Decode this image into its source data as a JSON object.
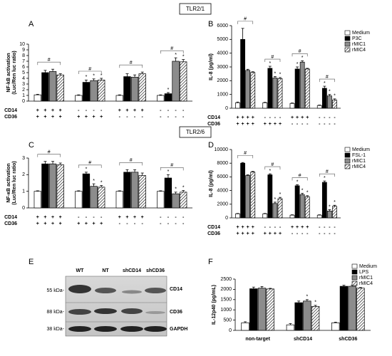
{
  "headers": [
    "TLR2/1",
    "TLR2/6"
  ],
  "blot": {
    "panel": "E",
    "lanes": [
      "WT",
      "NT",
      "shCD14",
      "shCD36"
    ],
    "sizes": [
      "55 kDa-",
      "88 kDa-",
      "38 kDa-"
    ],
    "proteins": [
      "CD14",
      "CD36",
      "GAPDH"
    ]
  },
  "chart_data": [
    {
      "type": "bar",
      "panel": "A",
      "ylabel": [
        "NF-kB activation",
        "(Luc/Ren luc ratio)"
      ],
      "ylim": [
        0,
        10
      ],
      "yticks": [
        0,
        1,
        2,
        3,
        4,
        5,
        6,
        7,
        8,
        9,
        10
      ],
      "legend": false,
      "group_annotation": "#",
      "rows": [
        {
          "name": "CD14",
          "values": [
            "+",
            "+",
            "+",
            "+",
            "-",
            "-",
            "-",
            "-",
            "+",
            "+",
            "+",
            "+",
            "-",
            "-",
            "-",
            "-"
          ]
        },
        {
          "name": "CD36",
          "values": [
            "+",
            "+",
            "+",
            "+",
            "+",
            "+",
            "+",
            "+",
            "-",
            "-",
            "-",
            "-",
            "-",
            "-",
            "-",
            "-"
          ]
        }
      ],
      "series": [
        {
          "name": "Medium",
          "color": "#ffffff",
          "values": [
            1.1,
            1.0,
            1.0,
            1.0
          ],
          "errors": [
            0.1,
            0.1,
            0.1,
            0.1
          ],
          "stars": [
            null,
            null,
            null,
            null
          ]
        },
        {
          "name": "P3C",
          "color": "#000000",
          "values": [
            5.0,
            3.3,
            4.3,
            1.3
          ],
          "errors": [
            0.4,
            0.4,
            0.5,
            0.2
          ],
          "stars": [
            null,
            "*",
            null,
            "*"
          ]
        },
        {
          "name": "rMIC1",
          "color": "#8c8c8c",
          "values": [
            5.2,
            3.6,
            4.2,
            7.0
          ],
          "errors": [
            0.4,
            0.3,
            0.4,
            0.6
          ],
          "stars": [
            null,
            "*",
            null,
            "*"
          ]
        },
        {
          "name": "rMIC4",
          "color": "#ffffff",
          "hatch": true,
          "values": [
            4.6,
            3.7,
            4.8,
            6.9
          ],
          "errors": [
            0.2,
            0.3,
            0.3,
            0.4
          ],
          "stars": [
            null,
            "*",
            null,
            "*"
          ]
        }
      ]
    },
    {
      "type": "bar",
      "panel": "B",
      "ylabel": [
        "IL-8 (pg/ml)"
      ],
      "ylim": [
        0,
        6000
      ],
      "yticks": [
        0,
        1000,
        2000,
        3000,
        4000,
        5000,
        6000
      ],
      "legend": true,
      "group_annotation": "#",
      "rows": [
        {
          "name": "CD14",
          "values": [
            "+",
            "+",
            "+",
            "+",
            "-",
            "-",
            "-",
            "-",
            "+",
            "+",
            "+",
            "+",
            "-",
            "-",
            "-",
            "-"
          ]
        },
        {
          "name": "CD36",
          "values": [
            "+",
            "+",
            "+",
            "+",
            "+",
            "+",
            "+",
            "+",
            "-",
            "-",
            "-",
            "-",
            "-",
            "-",
            "-",
            "-"
          ]
        }
      ],
      "series": [
        {
          "name": "Medium",
          "color": "#ffffff",
          "values": [
            400,
            400,
            350,
            200
          ],
          "errors": [
            50,
            30,
            30,
            30
          ],
          "stars": [
            null,
            null,
            null,
            null
          ]
        },
        {
          "name": "P3C",
          "color": "#000000",
          "values": [
            5000,
            2900,
            2850,
            1450
          ],
          "errors": [
            800,
            150,
            150,
            150
          ],
          "stars": [
            null,
            "*",
            "*",
            "*"
          ]
        },
        {
          "name": "rMIC1",
          "color": "#8c8c8c",
          "values": [
            2750,
            2200,
            3350,
            900
          ],
          "errors": [
            80,
            100,
            100,
            100
          ],
          "stars": [
            null,
            "*",
            "*",
            "*"
          ]
        },
        {
          "name": "rMIC4",
          "color": "#ffffff",
          "hatch": true,
          "values": [
            2600,
            2150,
            2850,
            600
          ],
          "errors": [
            50,
            80,
            50,
            80
          ],
          "stars": [
            null,
            "*",
            null,
            "*"
          ]
        }
      ]
    },
    {
      "type": "bar",
      "panel": "C",
      "ylabel": [
        "NF-κB activation",
        "(Luc/Ren luc ratio)"
      ],
      "ylim": [
        0,
        3
      ],
      "yticks": [
        0,
        1,
        2,
        3
      ],
      "legend": false,
      "group_annotation": "#",
      "rows": [
        {
          "name": "CD14",
          "values": [
            "+",
            "+",
            "+",
            "+",
            "-",
            "-",
            "-",
            "-",
            "+",
            "+",
            "+",
            "+",
            "-",
            "-",
            "-",
            "-"
          ]
        },
        {
          "name": "CD36",
          "values": [
            "+",
            "+",
            "+",
            "+",
            "+",
            "+",
            "+",
            "+",
            "-",
            "-",
            "-",
            "-",
            "-",
            "-",
            "-",
            "-"
          ]
        }
      ],
      "series": [
        {
          "name": "Medium",
          "color": "#ffffff",
          "values": [
            1.0,
            1.0,
            1.0,
            1.0
          ],
          "errors": [
            0.03,
            0.03,
            0.03,
            0.03
          ],
          "stars": [
            null,
            null,
            null,
            null
          ]
        },
        {
          "name": "FSL-1",
          "color": "#000000",
          "values": [
            2.65,
            2.05,
            2.15,
            1.8
          ],
          "errors": [
            0.15,
            0.1,
            0.15,
            0.2
          ],
          "stars": [
            null,
            "*",
            null,
            "*"
          ]
        },
        {
          "name": "rMIC1",
          "color": "#8c8c8c",
          "values": [
            2.65,
            1.3,
            2.15,
            0.85
          ],
          "errors": [
            0.15,
            0.15,
            0.15,
            0.1
          ],
          "stars": [
            null,
            "*",
            null,
            "*"
          ]
        },
        {
          "name": "rMIC4",
          "color": "#ffffff",
          "hatch": true,
          "values": [
            2.6,
            1.25,
            1.95,
            0.95
          ],
          "errors": [
            0.1,
            0.1,
            0.15,
            0.1
          ],
          "stars": [
            null,
            "*",
            null,
            "*"
          ]
        }
      ]
    },
    {
      "type": "bar",
      "panel": "D",
      "ylabel": [
        "IL-8 (pg/ml)"
      ],
      "ylim": [
        0,
        10000
      ],
      "yticks": [
        0,
        2000,
        4000,
        6000,
        8000,
        10000
      ],
      "legend": true,
      "group_annotation": "#",
      "rows": [
        {
          "name": "CD14",
          "values": [
            "+",
            "+",
            "+",
            "+",
            "-",
            "-",
            "-",
            "-",
            "+",
            "+",
            "+",
            "+",
            "-",
            "-",
            "-",
            "-"
          ]
        },
        {
          "name": "CD36",
          "values": [
            "+",
            "+",
            "+",
            "+",
            "+",
            "+",
            "+",
            "+",
            "-",
            "-",
            "-",
            "-",
            "-",
            "-",
            "-",
            "-"
          ]
        }
      ],
      "series": [
        {
          "name": "Medium",
          "color": "#ffffff",
          "values": [
            600,
            600,
            400,
            400
          ],
          "errors": [
            50,
            50,
            50,
            50
          ],
          "stars": [
            null,
            null,
            null,
            null
          ]
        },
        {
          "name": "FSL-1",
          "color": "#000000",
          "values": [
            8000,
            6300,
            4700,
            5200
          ],
          "errors": [
            100,
            150,
            150,
            200
          ],
          "stars": [
            null,
            "*",
            "*",
            "*"
          ]
        },
        {
          "name": "rMIC1",
          "color": "#8c8c8c",
          "values": [
            6200,
            2100,
            3400,
            1000
          ],
          "errors": [
            100,
            200,
            200,
            200
          ],
          "stars": [
            null,
            "*",
            "*",
            "*"
          ]
        },
        {
          "name": "rMIC4",
          "color": "#ffffff",
          "hatch": true,
          "values": [
            6700,
            2800,
            3100,
            1700
          ],
          "errors": [
            100,
            200,
            150,
            150
          ],
          "stars": [
            null,
            "*",
            "*",
            "*"
          ]
        }
      ]
    },
    {
      "type": "bar",
      "panel": "F",
      "ylabel": [
        "IL-12p40 (pg/mL)"
      ],
      "ylim": [
        0,
        2500
      ],
      "yticks": [
        0,
        500,
        1000,
        1500,
        2000,
        2500
      ],
      "legend": true,
      "categories": [
        "non-target",
        "shCD14",
        "shCD36"
      ],
      "series": [
        {
          "name": "Medium",
          "color": "#ffffff",
          "values": [
            370,
            270,
            370
          ],
          "errors": [
            50,
            60,
            30
          ],
          "stars": [
            null,
            null,
            null
          ]
        },
        {
          "name": "LPS",
          "color": "#000000",
          "values": [
            2030,
            1350,
            2150
          ],
          "errors": [
            80,
            80,
            50
          ],
          "stars": [
            null,
            null,
            null
          ]
        },
        {
          "name": "rMIC1",
          "color": "#8c8c8c",
          "values": [
            2060,
            1430,
            2150
          ],
          "errors": [
            80,
            70,
            50
          ],
          "stars": [
            null,
            "*",
            null
          ]
        },
        {
          "name": "rMIC4",
          "color": "#ffffff",
          "hatch": true,
          "values": [
            2020,
            1170,
            2060
          ],
          "errors": [
            30,
            50,
            30
          ],
          "stars": [
            null,
            "*",
            null
          ]
        }
      ]
    }
  ]
}
